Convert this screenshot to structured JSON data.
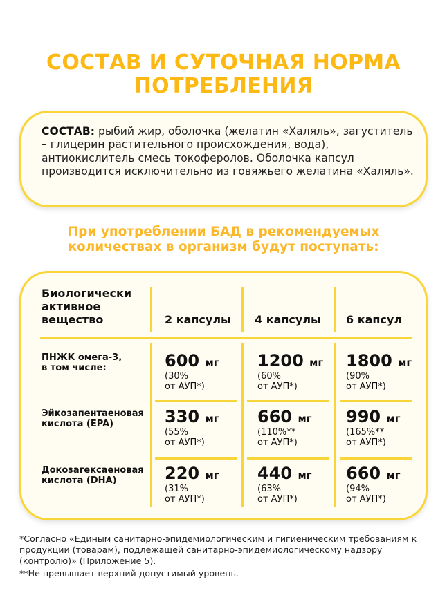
{
  "title": {
    "line1": "СОСТАВ И СУТОЧНАЯ НОРМА",
    "line2": "ПОТРЕБЛЕНИЯ"
  },
  "composition": {
    "label": "СОСТАВ:",
    "text": " рыбий жир, оболочка (желатин «Халяль», загуститель – глицерин растительного происхождения, вода), антиокислитель смесь токоферолов. Оболочка капсул производится исключительно из говяжьего желатина «Халяль»."
  },
  "subtitle": {
    "line1": "При употреблении БАД в рекомендуемых",
    "line2": "количествах в организм будут поступать:"
  },
  "colors": {
    "accent": "#fdb913",
    "border": "#f8d63a",
    "box_bg": "#fffdf2"
  },
  "table": {
    "headers": [
      "Биологически активное вещество",
      "2 капсулы",
      "4 капсулы",
      "6 капсул"
    ],
    "header_lines": [
      "Биологически",
      "активное",
      "вещество"
    ],
    "unit": "мг",
    "rows": [
      {
        "name1": "ПНЖК омега-3,",
        "name2": "в том числе:",
        "cells": [
          {
            "value": "600",
            "pct": "(30%",
            "ref": "от АУП*)"
          },
          {
            "value": "1200",
            "pct": "(60%",
            "ref": "от АУП*)"
          },
          {
            "value": "1800",
            "pct": "(90%",
            "ref": "от АУП*)"
          }
        ]
      },
      {
        "name1": "Эйкозапентаеновая",
        "name2": "кислота (EPA)",
        "cells": [
          {
            "value": "330",
            "pct": "(55%",
            "ref": "от АУП*)"
          },
          {
            "value": "660",
            "pct": "(110%**",
            "ref": "от АУП*)"
          },
          {
            "value": "990",
            "pct": "(165%**",
            "ref": "от АУП*)"
          }
        ]
      },
      {
        "name1": "Докозагексаеновая",
        "name2": "кислота (DHA)",
        "cells": [
          {
            "value": "220",
            "pct": "(31%",
            "ref": "от АУП*)"
          },
          {
            "value": "440",
            "pct": "(63%",
            "ref": "от АУП*)"
          },
          {
            "value": "660",
            "pct": "(94%",
            "ref": "от АУП*)"
          }
        ]
      }
    ]
  },
  "footnotes": {
    "one": "*Согласно «Единым санитарно-эпидемиологическим и гигиеническим требованиям к продукции (товарам), подлежащей санитарно-эпидемиологическому надзору (контролю)» (Приложение 5).",
    "two": "**Не превышает верхний допустимый уровень."
  }
}
